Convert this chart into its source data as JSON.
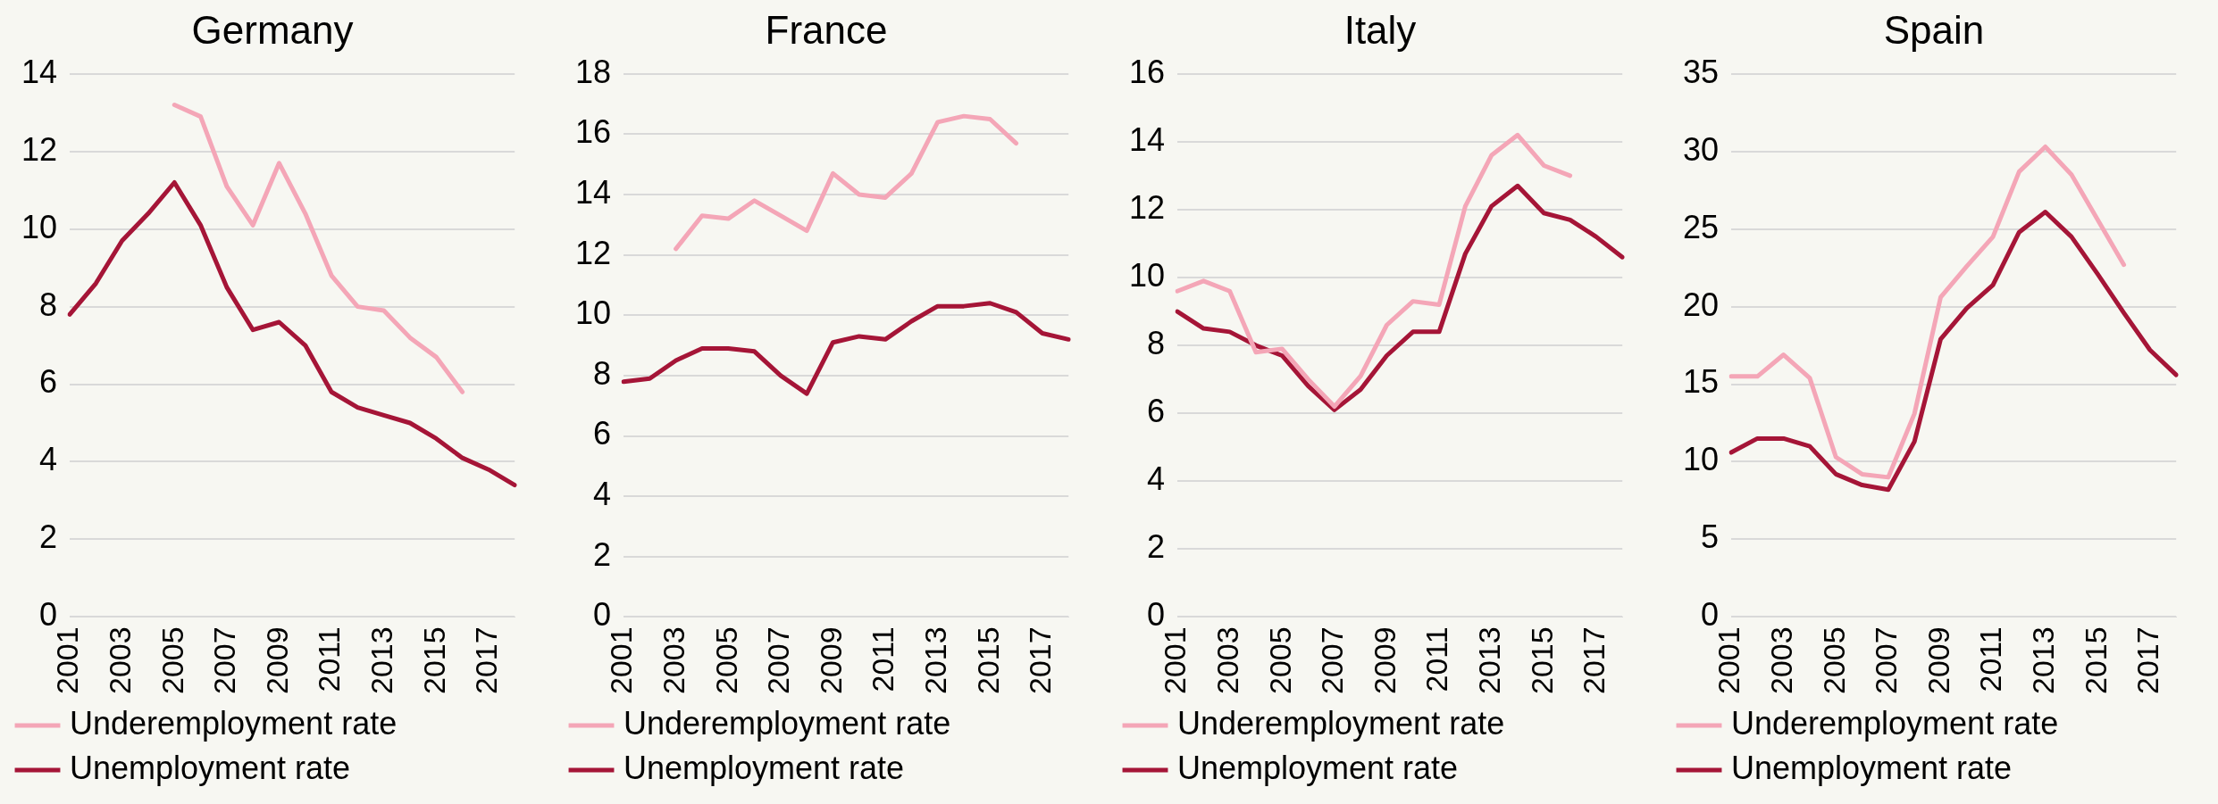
{
  "chart_data": [
    {
      "type": "line",
      "title": "Germany",
      "categories": [
        "2001",
        null,
        "2003",
        null,
        "2005",
        null,
        "2007",
        null,
        "2009",
        null,
        "2011",
        null,
        "2013",
        null,
        "2015",
        null,
        "2017",
        null
      ],
      "series": [
        {
          "name": "Underemployment rate",
          "color": "#f4a6b7",
          "values": [
            null,
            null,
            null,
            null,
            13.2,
            12.9,
            11.1,
            10.1,
            11.7,
            10.4,
            8.8,
            8.0,
            7.9,
            7.2,
            6.7,
            5.8,
            null,
            null
          ]
        },
        {
          "name": "Unemployment rate",
          "color": "#a51537",
          "values": [
            7.8,
            8.6,
            9.7,
            10.4,
            11.2,
            10.1,
            8.5,
            7.4,
            7.6,
            7.0,
            5.8,
            5.4,
            5.2,
            5.0,
            4.6,
            4.1,
            3.8,
            3.4
          ]
        }
      ],
      "ylim": [
        0,
        14
      ],
      "yticks": [
        0,
        2,
        4,
        6,
        8,
        10,
        12,
        14
      ],
      "grid": "y",
      "legend": "bottom",
      "line_style": "solid",
      "marker": "none"
    },
    {
      "type": "line",
      "title": "France",
      "categories": [
        "2001",
        null,
        "2003",
        null,
        "2005",
        null,
        "2007",
        null,
        "2009",
        null,
        "2011",
        null,
        "2013",
        null,
        "2015",
        null,
        "2017",
        null
      ],
      "series": [
        {
          "name": "Underemployment rate",
          "color": "#f4a6b7",
          "values": [
            null,
            null,
            12.2,
            13.3,
            13.2,
            13.8,
            13.3,
            12.8,
            14.7,
            14.0,
            13.9,
            14.7,
            16.4,
            16.6,
            16.5,
            15.7,
            null,
            null
          ]
        },
        {
          "name": "Unemployment rate",
          "color": "#a51537",
          "values": [
            7.8,
            7.9,
            8.5,
            8.9,
            8.9,
            8.8,
            8.0,
            7.4,
            9.1,
            9.3,
            9.2,
            9.8,
            10.3,
            10.3,
            10.4,
            10.1,
            9.4,
            9.2
          ]
        }
      ],
      "ylim": [
        0,
        18
      ],
      "yticks": [
        0,
        2,
        4,
        6,
        8,
        10,
        12,
        14,
        16,
        18
      ],
      "grid": "y",
      "legend": "bottom",
      "line_style": "solid",
      "marker": "none"
    },
    {
      "type": "line",
      "title": "Italy",
      "categories": [
        "2001",
        null,
        "2003",
        null,
        "2005",
        null,
        "2007",
        null,
        "2009",
        null,
        "2011",
        null,
        "2013",
        null,
        "2015",
        null,
        "2017",
        null
      ],
      "series": [
        {
          "name": "Underemployment rate",
          "color": "#f4a6b7",
          "values": [
            9.6,
            9.9,
            9.6,
            7.8,
            7.9,
            7.0,
            6.2,
            7.1,
            8.6,
            9.3,
            9.2,
            12.1,
            13.6,
            14.2,
            13.3,
            13.0,
            null,
            null
          ]
        },
        {
          "name": "Unemployment rate",
          "color": "#a51537",
          "values": [
            9.0,
            8.5,
            8.4,
            8.0,
            7.7,
            6.8,
            6.1,
            6.7,
            7.7,
            8.4,
            8.4,
            10.7,
            12.1,
            12.7,
            11.9,
            11.7,
            11.2,
            10.6
          ]
        }
      ],
      "ylim": [
        0,
        16
      ],
      "yticks": [
        0,
        2,
        4,
        6,
        8,
        10,
        12,
        14,
        16
      ],
      "grid": "y",
      "legend": "bottom",
      "line_style": "solid",
      "marker": "none"
    },
    {
      "type": "line",
      "title": "Spain",
      "categories": [
        "2001",
        null,
        "2003",
        null,
        "2005",
        null,
        "2007",
        null,
        "2009",
        null,
        "2011",
        null,
        "2013",
        null,
        "2015",
        null,
        "2017",
        null
      ],
      "series": [
        {
          "name": "Underemployment rate",
          "color": "#f4a6b7",
          "values": [
            15.5,
            15.5,
            16.9,
            15.4,
            10.3,
            9.2,
            9.0,
            13.1,
            20.6,
            22.6,
            24.5,
            28.7,
            30.3,
            28.5,
            25.6,
            22.7,
            null,
            null
          ]
        },
        {
          "name": "Unemployment rate",
          "color": "#a51537",
          "values": [
            10.6,
            11.5,
            11.5,
            11.0,
            9.2,
            8.5,
            8.2,
            11.3,
            17.9,
            19.9,
            21.4,
            24.8,
            26.1,
            24.5,
            22.1,
            19.6,
            17.2,
            15.6
          ]
        }
      ],
      "ylim": [
        0,
        35
      ],
      "yticks": [
        0,
        5,
        10,
        15,
        20,
        25,
        30,
        35
      ],
      "grid": "y",
      "legend": "bottom",
      "line_style": "solid",
      "marker": "none"
    }
  ]
}
